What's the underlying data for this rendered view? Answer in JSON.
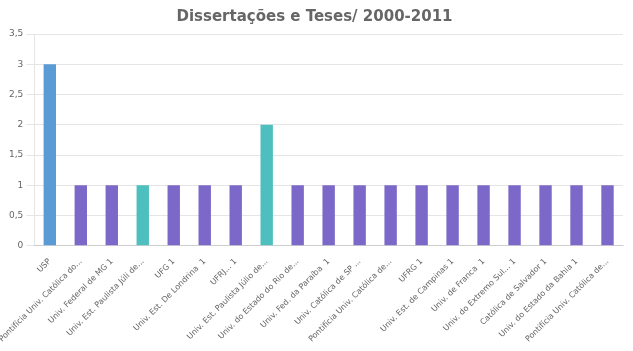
{
  "chart_data": {
    "type": "bar",
    "title": "Dissertações e Teses/ 2000-2011",
    "categories": [
      "USP",
      "Pontifícia Univ. Católica do...",
      "Univ. Federal de MG 1",
      "Univ. Est. Paulista Júli de...",
      "UFG 1",
      "Univ. Est. De Londrina  1",
      "UFRJ... 1",
      "Univ. Est. Paulista Júlio de...",
      "Univ. do Estado do Rio de...",
      "Univ. Fed. da Paraíba  1",
      "Univ. Católica de SP ...",
      "Pontifícia Univ. Católica de...",
      "UFRG 1",
      "Univ. Est. de Campinas 1",
      "Univ. de Franca  1",
      "Univ. do Extremo Sul... 1",
      "Católica de Salvador 1",
      "Univ. do Estado da Bahia 1",
      "Pontifícia Univ. Católica de..."
    ],
    "values": [
      3,
      1,
      1,
      1,
      1,
      1,
      1,
      2,
      1,
      1,
      1,
      1,
      1,
      1,
      1,
      1,
      1,
      1,
      1
    ],
    "colors": [
      "#5b9bd5",
      "#7b68c8",
      "#7b68c8",
      "#4dbfbf",
      "#7b68c8",
      "#7b68c8",
      "#7b68c8",
      "#4dbfbf",
      "#7b68c8",
      "#7b68c8",
      "#7b68c8",
      "#7b68c8",
      "#7b68c8",
      "#7b68c8",
      "#7b68c8",
      "#7b68c8",
      "#7b68c8",
      "#7b68c8",
      "#7b68c8"
    ],
    "ylim": [
      0,
      3.5
    ],
    "yticks": [
      0,
      {
        "value": 0.5,
        "label": "0,5"
      },
      1,
      {
        "value": 1.5,
        "label": "1,5"
      },
      2,
      {
        "value": 2.5,
        "label": "2,5"
      },
      3,
      {
        "value": 3.5,
        "label": "3,5"
      }
    ],
    "grid": true
  }
}
